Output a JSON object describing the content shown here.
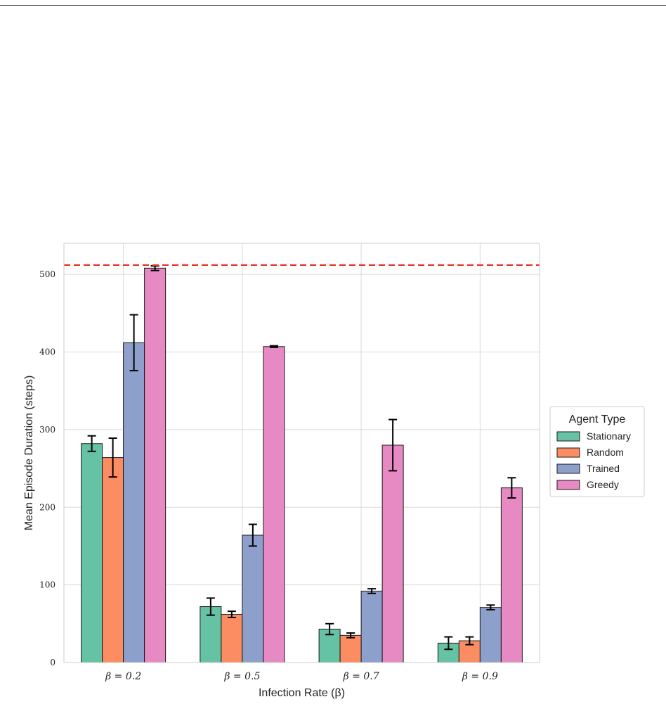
{
  "chart_data": {
    "type": "bar",
    "categories": [
      "β = 0.2",
      "β = 0.5",
      "β = 0.7",
      "β = 0.9"
    ],
    "xlabel": "Infection Rate (β)",
    "ylabel": "Mean Episode Duration (steps)",
    "ylim": [
      0,
      540
    ],
    "yticks": [
      0,
      100,
      200,
      300,
      400,
      500
    ],
    "grid": true,
    "reference_line": {
      "y": 512,
      "color": "#e8332f",
      "style": "dashed"
    },
    "legend": {
      "title": "Agent Type",
      "placement": "right, outside plot"
    },
    "series": [
      {
        "name": "Stationary",
        "color": "#66c2a5",
        "values": [
          282,
          72,
          43,
          25
        ],
        "errors": [
          10,
          11,
          7,
          8
        ]
      },
      {
        "name": "Random",
        "color": "#fc8d62",
        "values": [
          264,
          62,
          35,
          28
        ],
        "errors": [
          25,
          4,
          3,
          5
        ]
      },
      {
        "name": "Trained",
        "color": "#8da0cb",
        "values": [
          412,
          164,
          92,
          71
        ],
        "errors": [
          36,
          14,
          3,
          3
        ]
      },
      {
        "name": "Greedy",
        "color": "#e78ac3",
        "values": [
          508,
          407,
          280,
          225
        ],
        "errors": [
          3,
          1,
          33,
          13
        ]
      }
    ]
  }
}
